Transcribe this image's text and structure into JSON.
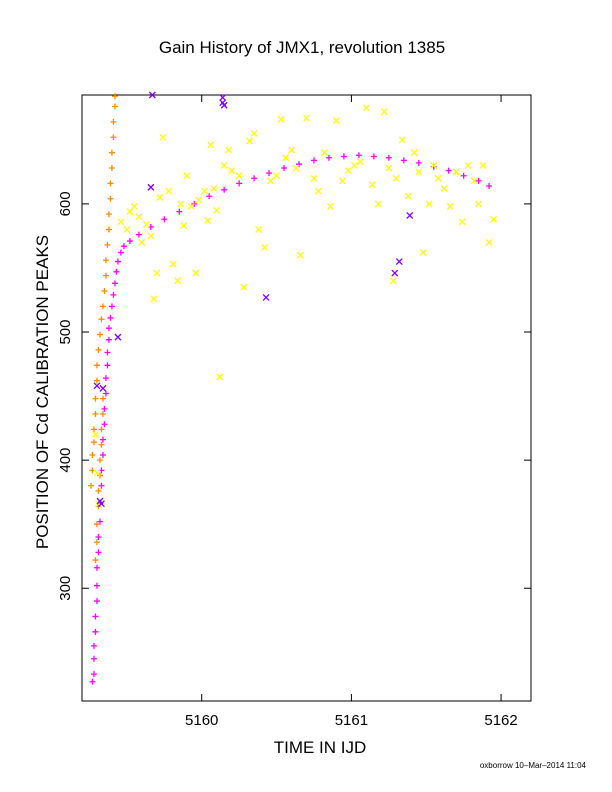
{
  "chart_data": {
    "type": "scatter",
    "title": "Gain History of JMX1, revolution 1385",
    "xlabel": "TIME IN IJD",
    "ylabel": "POSITION OF Cd CALIBRATION PEAKS",
    "xlim": [
      5159.2,
      5162.2
    ],
    "ylim": [
      212,
      685
    ],
    "x_ticks": [
      5160,
      5161,
      5162
    ],
    "x_tick_labels": [
      "5160",
      "5161",
      "5162"
    ],
    "y_ticks": [
      300,
      400,
      500,
      600
    ],
    "y_tick_labels": [
      "300",
      "400",
      "500",
      "600"
    ],
    "grid": false,
    "legend": "none",
    "credit": "oxborrow 10–Mar–2014 11:04",
    "colors": {
      "magenta_series": "#ff00ff",
      "orange_series": "#ff8c00",
      "yellow_series": "#ffff00",
      "purple_series": "#7f00ff"
    },
    "series": [
      {
        "color_key": "magenta_series",
        "marker": "plus",
        "points": [
          [
            5159.27,
            227
          ],
          [
            5159.28,
            233
          ],
          [
            5159.28,
            245
          ],
          [
            5159.28,
            255
          ],
          [
            5159.29,
            266
          ],
          [
            5159.29,
            278
          ],
          [
            5159.3,
            290
          ],
          [
            5159.3,
            302
          ],
          [
            5159.3,
            316
          ],
          [
            5159.31,
            328
          ],
          [
            5159.31,
            340
          ],
          [
            5159.32,
            352
          ],
          [
            5159.32,
            366
          ],
          [
            5159.33,
            380
          ],
          [
            5159.33,
            392
          ],
          [
            5159.34,
            404
          ],
          [
            5159.34,
            416
          ],
          [
            5159.35,
            428
          ],
          [
            5159.35,
            440
          ],
          [
            5159.36,
            452
          ],
          [
            5159.36,
            464
          ],
          [
            5159.37,
            474
          ],
          [
            5159.37,
            484
          ],
          [
            5159.38,
            494
          ],
          [
            5159.38,
            503
          ],
          [
            5159.39,
            511
          ],
          [
            5159.4,
            520
          ],
          [
            5159.41,
            529
          ],
          [
            5159.42,
            538
          ],
          [
            5159.43,
            547
          ],
          [
            5159.44,
            555
          ],
          [
            5159.46,
            562
          ],
          [
            5159.48,
            567
          ],
          [
            5159.52,
            571
          ],
          [
            5159.58,
            576
          ],
          [
            5159.66,
            582
          ],
          [
            5159.75,
            588
          ],
          [
            5159.85,
            594
          ],
          [
            5159.95,
            600
          ],
          [
            5160.05,
            606
          ],
          [
            5160.15,
            611
          ],
          [
            5160.25,
            616
          ],
          [
            5160.35,
            620
          ],
          [
            5160.45,
            624
          ],
          [
            5160.55,
            628
          ],
          [
            5160.65,
            631
          ],
          [
            5160.75,
            634
          ],
          [
            5160.85,
            636
          ],
          [
            5160.95,
            637
          ],
          [
            5161.05,
            638
          ],
          [
            5161.15,
            637
          ],
          [
            5161.25,
            636
          ],
          [
            5161.35,
            634
          ],
          [
            5161.45,
            632
          ],
          [
            5161.55,
            629
          ],
          [
            5161.65,
            626
          ],
          [
            5161.75,
            622
          ],
          [
            5161.85,
            618
          ],
          [
            5161.92,
            614
          ]
        ]
      },
      {
        "color_key": "orange_series",
        "marker": "plus",
        "points": [
          [
            5159.26,
            380
          ],
          [
            5159.27,
            392
          ],
          [
            5159.27,
            404
          ],
          [
            5159.28,
            414
          ],
          [
            5159.28,
            424
          ],
          [
            5159.29,
            436
          ],
          [
            5159.29,
            448
          ],
          [
            5159.3,
            462
          ],
          [
            5159.3,
            474
          ],
          [
            5159.31,
            486
          ],
          [
            5159.32,
            498
          ],
          [
            5159.33,
            510
          ],
          [
            5159.34,
            520
          ],
          [
            5159.35,
            532
          ],
          [
            5159.36,
            544
          ],
          [
            5159.36,
            556
          ],
          [
            5159.37,
            568
          ],
          [
            5159.38,
            580
          ],
          [
            5159.38,
            592
          ],
          [
            5159.39,
            604
          ],
          [
            5159.39,
            616
          ],
          [
            5159.4,
            628
          ],
          [
            5159.4,
            640
          ],
          [
            5159.41,
            652
          ],
          [
            5159.41,
            664
          ],
          [
            5159.42,
            676
          ],
          [
            5159.42,
            684
          ],
          [
            5159.29,
            322
          ],
          [
            5159.3,
            336
          ],
          [
            5159.3,
            350
          ],
          [
            5159.31,
            364
          ],
          [
            5159.31,
            376
          ],
          [
            5159.32,
            388
          ],
          [
            5159.32,
            400
          ],
          [
            5159.33,
            412
          ],
          [
            5159.33,
            424
          ],
          [
            5159.34,
            436
          ],
          [
            5159.34,
            448
          ]
        ]
      },
      {
        "color_key": "yellow_series",
        "marker": "cross",
        "points": [
          [
            5159.46,
            586
          ],
          [
            5159.5,
            580
          ],
          [
            5159.52,
            594
          ],
          [
            5159.55,
            598
          ],
          [
            5159.58,
            590
          ],
          [
            5159.6,
            570
          ],
          [
            5159.63,
            584
          ],
          [
            5159.66,
            575
          ],
          [
            5159.68,
            526
          ],
          [
            5159.7,
            546
          ],
          [
            5159.72,
            605
          ],
          [
            5159.74,
            652
          ],
          [
            5159.78,
            610
          ],
          [
            5159.81,
            553
          ],
          [
            5159.84,
            540
          ],
          [
            5159.86,
            600
          ],
          [
            5159.88,
            583
          ],
          [
            5159.9,
            622
          ],
          [
            5159.93,
            598
          ],
          [
            5159.96,
            546
          ],
          [
            5159.98,
            603
          ],
          [
            5160.02,
            610
          ],
          [
            5160.04,
            587
          ],
          [
            5160.06,
            646
          ],
          [
            5160.08,
            612
          ],
          [
            5160.1,
            595
          ],
          [
            5160.12,
            465
          ],
          [
            5160.15,
            630
          ],
          [
            5160.18,
            642
          ],
          [
            5160.2,
            626
          ],
          [
            5160.25,
            622
          ],
          [
            5160.28,
            535
          ],
          [
            5160.32,
            649
          ],
          [
            5160.35,
            655
          ],
          [
            5160.38,
            580
          ],
          [
            5160.42,
            566
          ],
          [
            5160.46,
            618
          ],
          [
            5160.5,
            622
          ],
          [
            5160.53,
            666
          ],
          [
            5160.56,
            636
          ],
          [
            5160.6,
            642
          ],
          [
            5160.63,
            628
          ],
          [
            5160.66,
            560
          ],
          [
            5160.7,
            667
          ],
          [
            5160.75,
            620
          ],
          [
            5160.78,
            610
          ],
          [
            5160.82,
            640
          ],
          [
            5160.86,
            598
          ],
          [
            5160.9,
            665
          ],
          [
            5160.94,
            618
          ],
          [
            5160.98,
            626
          ],
          [
            5161.02,
            630
          ],
          [
            5161.06,
            633
          ],
          [
            5161.1,
            675
          ],
          [
            5161.14,
            615
          ],
          [
            5161.18,
            600
          ],
          [
            5161.22,
            672
          ],
          [
            5161.25,
            628
          ],
          [
            5161.28,
            540
          ],
          [
            5161.3,
            620
          ],
          [
            5161.34,
            650
          ],
          [
            5161.38,
            606
          ],
          [
            5161.42,
            640
          ],
          [
            5161.45,
            625
          ],
          [
            5161.48,
            562
          ],
          [
            5161.52,
            600
          ],
          [
            5161.55,
            630
          ],
          [
            5161.58,
            620
          ],
          [
            5161.62,
            612
          ],
          [
            5161.66,
            598
          ],
          [
            5161.7,
            625
          ],
          [
            5161.74,
            586
          ],
          [
            5161.78,
            630
          ],
          [
            5161.82,
            618
          ],
          [
            5161.85,
            600
          ],
          [
            5161.88,
            630
          ],
          [
            5161.92,
            570
          ],
          [
            5161.95,
            588
          ],
          [
            5159.3,
            390
          ],
          [
            5159.31,
            366
          ],
          [
            5159.29,
            420
          ]
        ]
      },
      {
        "color_key": "purple_series",
        "marker": "cross",
        "points": [
          [
            5159.3,
            458
          ],
          [
            5159.34,
            456
          ],
          [
            5159.32,
            368
          ],
          [
            5159.33,
            366
          ],
          [
            5159.44,
            496
          ],
          [
            5159.66,
            613
          ],
          [
            5160.43,
            527
          ],
          [
            5161.29,
            546
          ],
          [
            5161.32,
            555
          ],
          [
            5161.39,
            591
          ],
          [
            5159.67,
            685
          ],
          [
            5160.14,
            683
          ],
          [
            5160.14,
            679
          ],
          [
            5160.15,
            677
          ]
        ]
      }
    ]
  }
}
